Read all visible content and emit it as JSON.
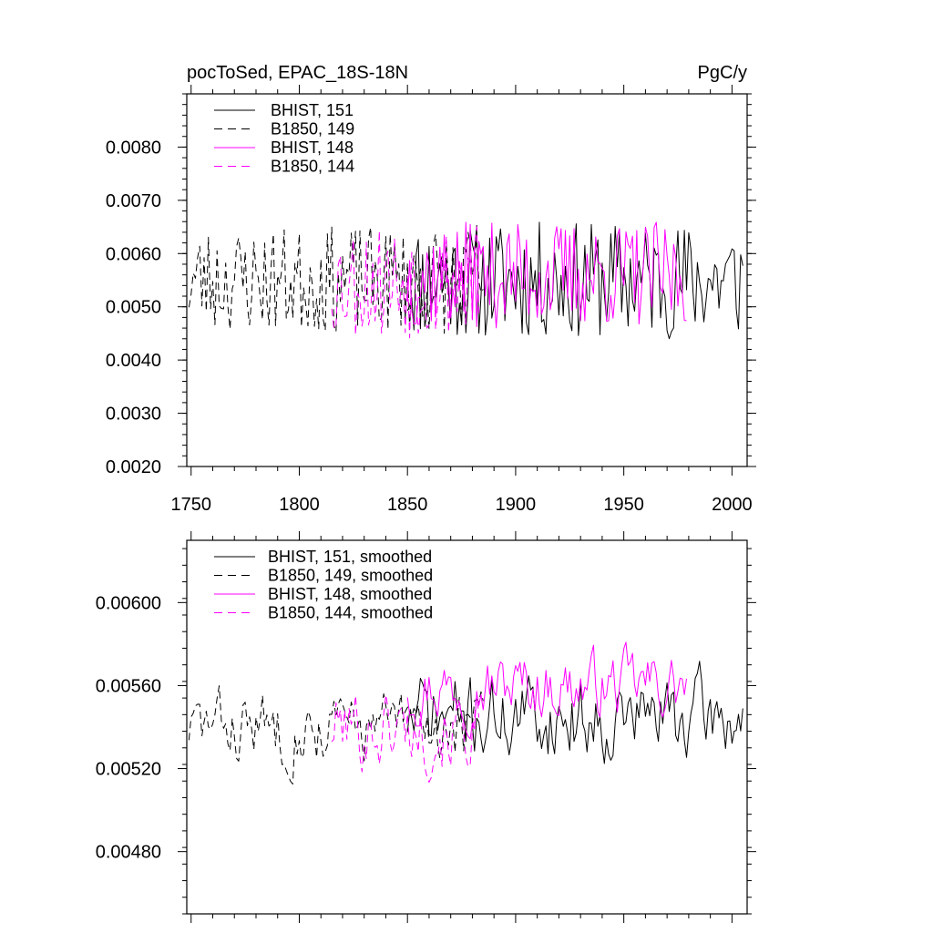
{
  "chart_data": [
    {
      "type": "line",
      "title_left": "pocToSed, EPAC_18S-18N",
      "title_right": "PgC/y",
      "xlim": [
        1748,
        2007
      ],
      "ylim": [
        0.002,
        0.009
      ],
      "yticks": [
        0.002,
        0.003,
        0.004,
        0.005,
        0.006,
        0.007,
        0.008
      ],
      "ytick_labels": [
        "0.0020",
        "0.0030",
        "0.0040",
        "0.0050",
        "0.0060",
        "0.0070",
        "0.0080"
      ],
      "xticks": [
        1750,
        1800,
        1850,
        1900,
        1950,
        2000
      ],
      "xtick_labels": [
        "1750",
        "1800",
        "1850",
        "1900",
        "1950",
        "2000"
      ],
      "legend_position": "top-left",
      "series": [
        {
          "name": "BHIST, 151",
          "color": "#000000",
          "dash": "solid",
          "x_start": 1850,
          "x_end": 2005,
          "mean": 0.0055,
          "amp": 0.0011,
          "seed": 11
        },
        {
          "name": "B1850, 149",
          "color": "#000000",
          "dash": "dashed",
          "x_start": 1749,
          "x_end": 1885,
          "mean": 0.0055,
          "amp": 0.001,
          "seed": 23
        },
        {
          "name": "BHIST, 148",
          "color": "#ff00ff",
          "dash": "solid",
          "x_start": 1850,
          "x_end": 1979,
          "mean": 0.0056,
          "amp": 0.001,
          "seed": 37
        },
        {
          "name": "B1850, 144",
          "color": "#ff00ff",
          "dash": "dashed",
          "x_start": 1815,
          "x_end": 1883,
          "mean": 0.0055,
          "amp": 0.0011,
          "seed": 53
        }
      ]
    },
    {
      "type": "line",
      "title_left": "",
      "title_right": "",
      "xlim": [
        1748,
        2007
      ],
      "ylim": [
        0.0045,
        0.0063
      ],
      "yticks": [
        0.0048,
        0.0052,
        0.0056,
        0.006
      ],
      "ytick_labels": [
        "0.00480",
        "0.00520",
        "0.00560",
        "0.00600"
      ],
      "xticks": [
        1750,
        1800,
        1850,
        1900,
        1950,
        2000
      ],
      "xtick_labels": [],
      "legend_position": "top-left",
      "series": [
        {
          "name": "BHIST, 151, smoothed",
          "color": "#000000",
          "dash": "solid",
          "x_start": 1850,
          "x_end": 2005,
          "mean": 0.00545,
          "amp": 0.00035,
          "seed": 71
        },
        {
          "name": "B1850, 149, smoothed",
          "color": "#000000",
          "dash": "dashed",
          "x_start": 1749,
          "x_end": 1885,
          "mean": 0.0054,
          "amp": 0.0003,
          "seed": 83
        },
        {
          "name": "BHIST, 148, smoothed",
          "color": "#ff00ff",
          "dash": "solid",
          "x_start": 1850,
          "x_end": 1979,
          "mean": 0.0056,
          "amp": 0.00028,
          "seed": 97
        },
        {
          "name": "B1850, 144, smoothed",
          "color": "#ff00ff",
          "dash": "dashed",
          "x_start": 1815,
          "x_end": 1883,
          "mean": 0.0054,
          "amp": 0.00035,
          "seed": 101
        }
      ]
    }
  ]
}
